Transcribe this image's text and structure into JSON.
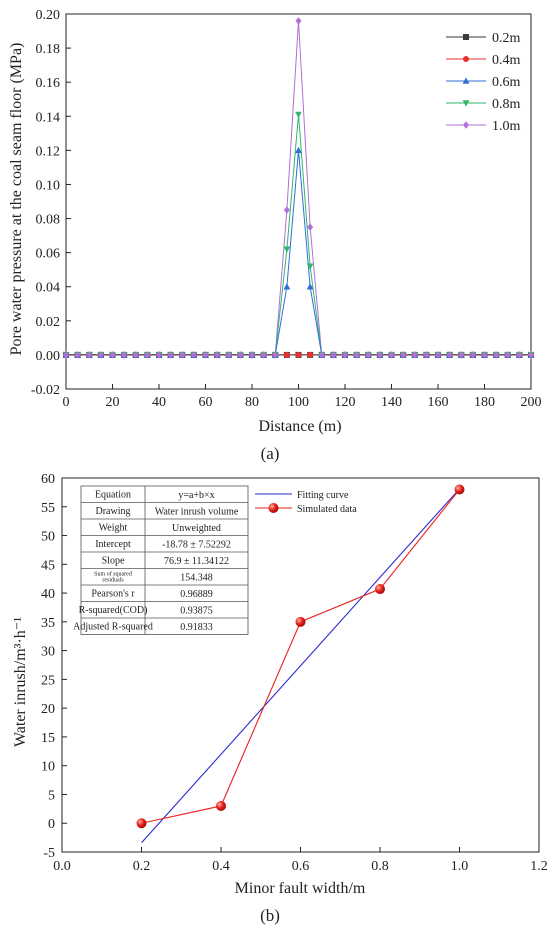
{
  "chart_data": [
    {
      "type": "line",
      "panel_label": "(a)",
      "xlabel": "Distance (m)",
      "ylabel": "Pore water pressure at the coal seam floor (MPa)",
      "xlim": [
        0,
        200
      ],
      "ylim": [
        -0.02,
        0.2
      ],
      "x_ticks": [
        "0",
        "20",
        "40",
        "60",
        "80",
        "100",
        "120",
        "140",
        "160",
        "180",
        "200"
      ],
      "y_ticks": [
        "-0.02",
        "0.00",
        "0.02",
        "0.04",
        "0.06",
        "0.08",
        "0.10",
        "0.12",
        "0.14",
        "0.16",
        "0.18",
        "0.20"
      ],
      "legend_position": "top-right",
      "x": [
        0,
        5,
        10,
        15,
        20,
        25,
        30,
        35,
        40,
        45,
        50,
        55,
        60,
        65,
        70,
        75,
        80,
        85,
        90,
        95,
        100,
        105,
        110,
        115,
        120,
        125,
        130,
        135,
        140,
        145,
        150,
        155,
        160,
        165,
        170,
        175,
        180,
        185,
        190,
        195,
        200
      ],
      "series": [
        {
          "name": "0.2m",
          "color": "#3a3a3a",
          "marker": "square",
          "values": [
            0,
            0,
            0,
            0,
            0,
            0,
            0,
            0,
            0,
            0,
            0,
            0,
            0,
            0,
            0,
            0,
            0,
            0,
            0,
            0,
            0,
            0,
            0,
            0,
            0,
            0,
            0,
            0,
            0,
            0,
            0,
            0,
            0,
            0,
            0,
            0,
            0,
            0,
            0,
            0,
            0
          ]
        },
        {
          "name": "0.4m",
          "color": "#e8312f",
          "marker": "circle",
          "values": [
            0,
            0,
            0,
            0,
            0,
            0,
            0,
            0,
            0,
            0,
            0,
            0,
            0,
            0,
            0,
            0,
            0,
            0,
            0,
            0,
            0,
            0,
            0,
            0,
            0,
            0,
            0,
            0,
            0,
            0,
            0,
            0,
            0,
            0,
            0,
            0,
            0,
            0,
            0,
            0,
            0
          ]
        },
        {
          "name": "0.6m",
          "color": "#2f6fd6",
          "marker": "triangle-up",
          "values": [
            0,
            0,
            0,
            0,
            0,
            0,
            0,
            0,
            0,
            0,
            0,
            0,
            0,
            0,
            0,
            0,
            0,
            0,
            0,
            0.04,
            0.12,
            0.04,
            0,
            0,
            0,
            0,
            0,
            0,
            0,
            0,
            0,
            0,
            0,
            0,
            0,
            0,
            0,
            0,
            0,
            0,
            0
          ]
        },
        {
          "name": "0.8m",
          "color": "#2fb86a",
          "marker": "triangle-down",
          "values": [
            0,
            0,
            0,
            0,
            0,
            0,
            0,
            0,
            0,
            0,
            0,
            0,
            0,
            0,
            0,
            0,
            0,
            0,
            0,
            0.062,
            0.141,
            0.052,
            0,
            0,
            0,
            0,
            0,
            0,
            0,
            0,
            0,
            0,
            0,
            0,
            0,
            0,
            0,
            0,
            0,
            0,
            0
          ]
        },
        {
          "name": "1.0m",
          "color": "#b070d8",
          "marker": "diamond",
          "values": [
            0,
            0,
            0,
            0,
            0,
            0,
            0,
            0,
            0,
            0,
            0,
            0,
            0,
            0,
            0,
            0,
            0,
            0,
            0,
            0.085,
            0.196,
            0.075,
            0,
            0,
            0,
            0,
            0,
            0,
            0,
            0,
            0,
            0,
            0,
            0,
            0,
            0,
            0,
            0,
            0,
            0,
            0
          ]
        }
      ]
    },
    {
      "type": "line",
      "panel_label": "(b)",
      "xlabel": "Minor fault width/m",
      "ylabel": "Water inrush/m³·h⁻¹",
      "xlim": [
        0,
        1.2
      ],
      "ylim": [
        -5,
        60
      ],
      "x_ticks": [
        "0.0",
        "0.2",
        "0.4",
        "0.6",
        "0.8",
        "1.0",
        "1.2"
      ],
      "y_ticks": [
        "-5",
        "0",
        "5",
        "10",
        "15",
        "20",
        "25",
        "30",
        "35",
        "40",
        "45",
        "50",
        "55",
        "60"
      ],
      "legend_position": "top-center",
      "series": [
        {
          "name": "Fitting curve",
          "color": "#2a2ad0",
          "kind": "line",
          "x": [
            0.2,
            1.0
          ],
          "values": [
            -3.4,
            58.12
          ]
        },
        {
          "name": "Simulated data",
          "color": "#e8201c",
          "kind": "line-marker",
          "x": [
            0.2,
            0.4,
            0.6,
            0.8,
            1.0
          ],
          "values": [
            0,
            3,
            35,
            40.7,
            58
          ]
        }
      ],
      "stats_table": [
        [
          "Equation",
          "y=a+b×x"
        ],
        [
          "Drawing",
          "Water inrush volume"
        ],
        [
          "Weight",
          "Unweighted"
        ],
        [
          "Intercept",
          "-18.78 ± 7.52292"
        ],
        [
          "Slope",
          "76.9 ± 11.34122"
        ],
        [
          "Sum of squared residuals",
          "154.348"
        ],
        [
          "Pearson's r",
          "0.96889"
        ],
        [
          "R-squared(COD)",
          "0.93875"
        ],
        [
          "Adjusted R-squared",
          "0.91833"
        ]
      ]
    }
  ]
}
